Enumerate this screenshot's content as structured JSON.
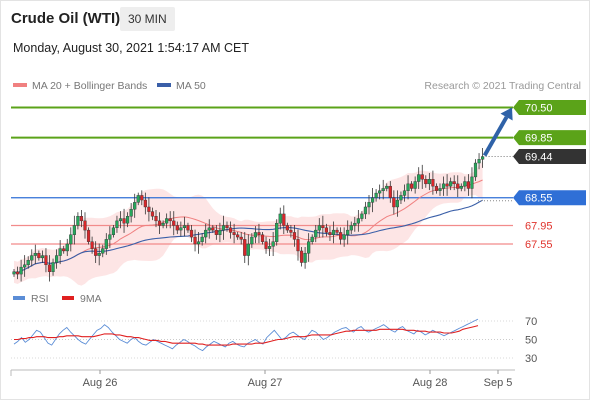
{
  "header": {
    "title": "Crude Oil (WTI)",
    "timeframe": "30 MIN",
    "datetime": "Monday, August 30, 2021 1:54:17 AM CET"
  },
  "legend": {
    "ma20_label": "MA 20 + Bollinger Bands",
    "ma50_label": "MA 50",
    "credit": "Research © 2021 Trading Central"
  },
  "rsi_legend": {
    "rsi_label": "RSI",
    "ma_label": "9MA"
  },
  "colors": {
    "candle_up": "#26a65b",
    "candle_down": "#d9262a",
    "ma20": "#f08080",
    "band_fill": "#fde2e2",
    "ma50": "#3a5fa8",
    "resistance": "#5ba319",
    "pivot": "#2f6fd6",
    "support": "#f28b8b",
    "support_text": "#e0342d",
    "current": "#333333",
    "arrow": "#2f62a8",
    "rsi": "#5b8dd6",
    "rsi_ma": "#e02020"
  },
  "chart_data": {
    "type": "candlestick",
    "ylim": [
      66.6,
      71.0
    ],
    "x_ticks": [
      "Aug 26",
      "Aug 27",
      "Aug 28",
      "Sep 5"
    ],
    "levels": [
      {
        "value": 70.5,
        "label": "70.50",
        "kind": "resistance"
      },
      {
        "value": 69.85,
        "label": "69.85",
        "kind": "resistance"
      },
      {
        "value": 69.44,
        "label": "69.44",
        "kind": "current"
      },
      {
        "value": 68.55,
        "label": "68.55",
        "kind": "pivot"
      },
      {
        "value": 67.95,
        "label": "67.95",
        "kind": "support"
      },
      {
        "value": 67.55,
        "label": "67.55",
        "kind": "support"
      }
    ],
    "forecast": {
      "from": 69.44,
      "to": 70.5
    },
    "closes": [
      66.95,
      66.9,
      67.05,
      67.1,
      67.2,
      67.3,
      67.35,
      67.25,
      67.3,
      67.1,
      66.95,
      67.15,
      67.3,
      67.45,
      67.4,
      67.55,
      67.75,
      67.95,
      68.15,
      68.05,
      67.85,
      67.6,
      67.45,
      67.3,
      67.35,
      67.45,
      67.65,
      67.75,
      67.9,
      68.05,
      68.1,
      68.0,
      68.15,
      68.3,
      68.45,
      68.6,
      68.5,
      68.35,
      68.25,
      68.15,
      68.05,
      67.95,
      68.0,
      68.1,
      68.05,
      67.95,
      67.85,
      67.9,
      67.95,
      67.85,
      67.7,
      67.55,
      67.6,
      67.7,
      67.85,
      67.9,
      67.85,
      67.75,
      67.85,
      67.95,
      67.9,
      67.8,
      67.75,
      67.7,
      67.65,
      67.3,
      67.55,
      67.7,
      67.8,
      67.75,
      67.6,
      67.45,
      67.5,
      67.6,
      68.0,
      68.2,
      67.95,
      67.85,
      67.8,
      67.65,
      67.4,
      67.15,
      67.35,
      67.6,
      67.7,
      67.85,
      67.95,
      67.9,
      67.8,
      67.75,
      67.85,
      67.8,
      67.65,
      67.75,
      67.85,
      67.95,
      68.0,
      68.1,
      68.2,
      68.35,
      68.45,
      68.55,
      68.65,
      68.7,
      68.75,
      68.8,
      68.55,
      68.35,
      68.5,
      68.6,
      68.7,
      68.85,
      68.75,
      68.9,
      69.05,
      68.95,
      68.85,
      68.95,
      68.8,
      68.7,
      68.75,
      68.85,
      68.8,
      68.9,
      68.85,
      68.75,
      68.8,
      68.9,
      68.75,
      69.0,
      69.3,
      69.38,
      69.44
    ]
  },
  "rsi_data": {
    "ticks": [
      "70",
      "50",
      "30"
    ],
    "ylim": [
      20,
      80
    ],
    "rsi": [
      45,
      48,
      52,
      47,
      50,
      55,
      60,
      58,
      52,
      46,
      44,
      50,
      56,
      60,
      63,
      58,
      54,
      50,
      47,
      45,
      50,
      55,
      60,
      62,
      66,
      63,
      58,
      54,
      50,
      48,
      46,
      50,
      52,
      48,
      45,
      44,
      47,
      50,
      48,
      46,
      44,
      42,
      40,
      44,
      47,
      50,
      48,
      45,
      43,
      40,
      38,
      42,
      45,
      48,
      46,
      44,
      42,
      46,
      48,
      45,
      43,
      42,
      46,
      48,
      50,
      47,
      45,
      52,
      56,
      60,
      55,
      50,
      52,
      56,
      58,
      55,
      52,
      50,
      55,
      60,
      58,
      54,
      50,
      52,
      55,
      58,
      60,
      62,
      63,
      60,
      58,
      62,
      64,
      60,
      58,
      60,
      62,
      64,
      66,
      63,
      60,
      58,
      62,
      64,
      60,
      58,
      56,
      60,
      58,
      55,
      57,
      60,
      58,
      56,
      54,
      56,
      58,
      60,
      62,
      64,
      66,
      68,
      70,
      72
    ],
    "rsi_ma": [
      50,
      50,
      51,
      51,
      52,
      52,
      53,
      53,
      53,
      52,
      52,
      52,
      53,
      53,
      54,
      54,
      54,
      54,
      53,
      53,
      53,
      53,
      54,
      55,
      56,
      56,
      56,
      55,
      55,
      54,
      53,
      53,
      52,
      52,
      51,
      50,
      49,
      49,
      49,
      48,
      48,
      47,
      46,
      46,
      46,
      46,
      46,
      46,
      46,
      45,
      45,
      44,
      44,
      44,
      44,
      44,
      44,
      44,
      45,
      45,
      45,
      45,
      45,
      45,
      46,
      46,
      46,
      47,
      48,
      49,
      50,
      50,
      51,
      52,
      53,
      53,
      53,
      53,
      54,
      55,
      55,
      55,
      55,
      55,
      55,
      56,
      57,
      58,
      59,
      59,
      60,
      60,
      60,
      60,
      60,
      60,
      60,
      61,
      61,
      61,
      61,
      61,
      61,
      61,
      60,
      60,
      60,
      59,
      59,
      59,
      58,
      58,
      58,
      58,
      57,
      57,
      57,
      58,
      59,
      61,
      62,
      63,
      64,
      65
    ]
  }
}
